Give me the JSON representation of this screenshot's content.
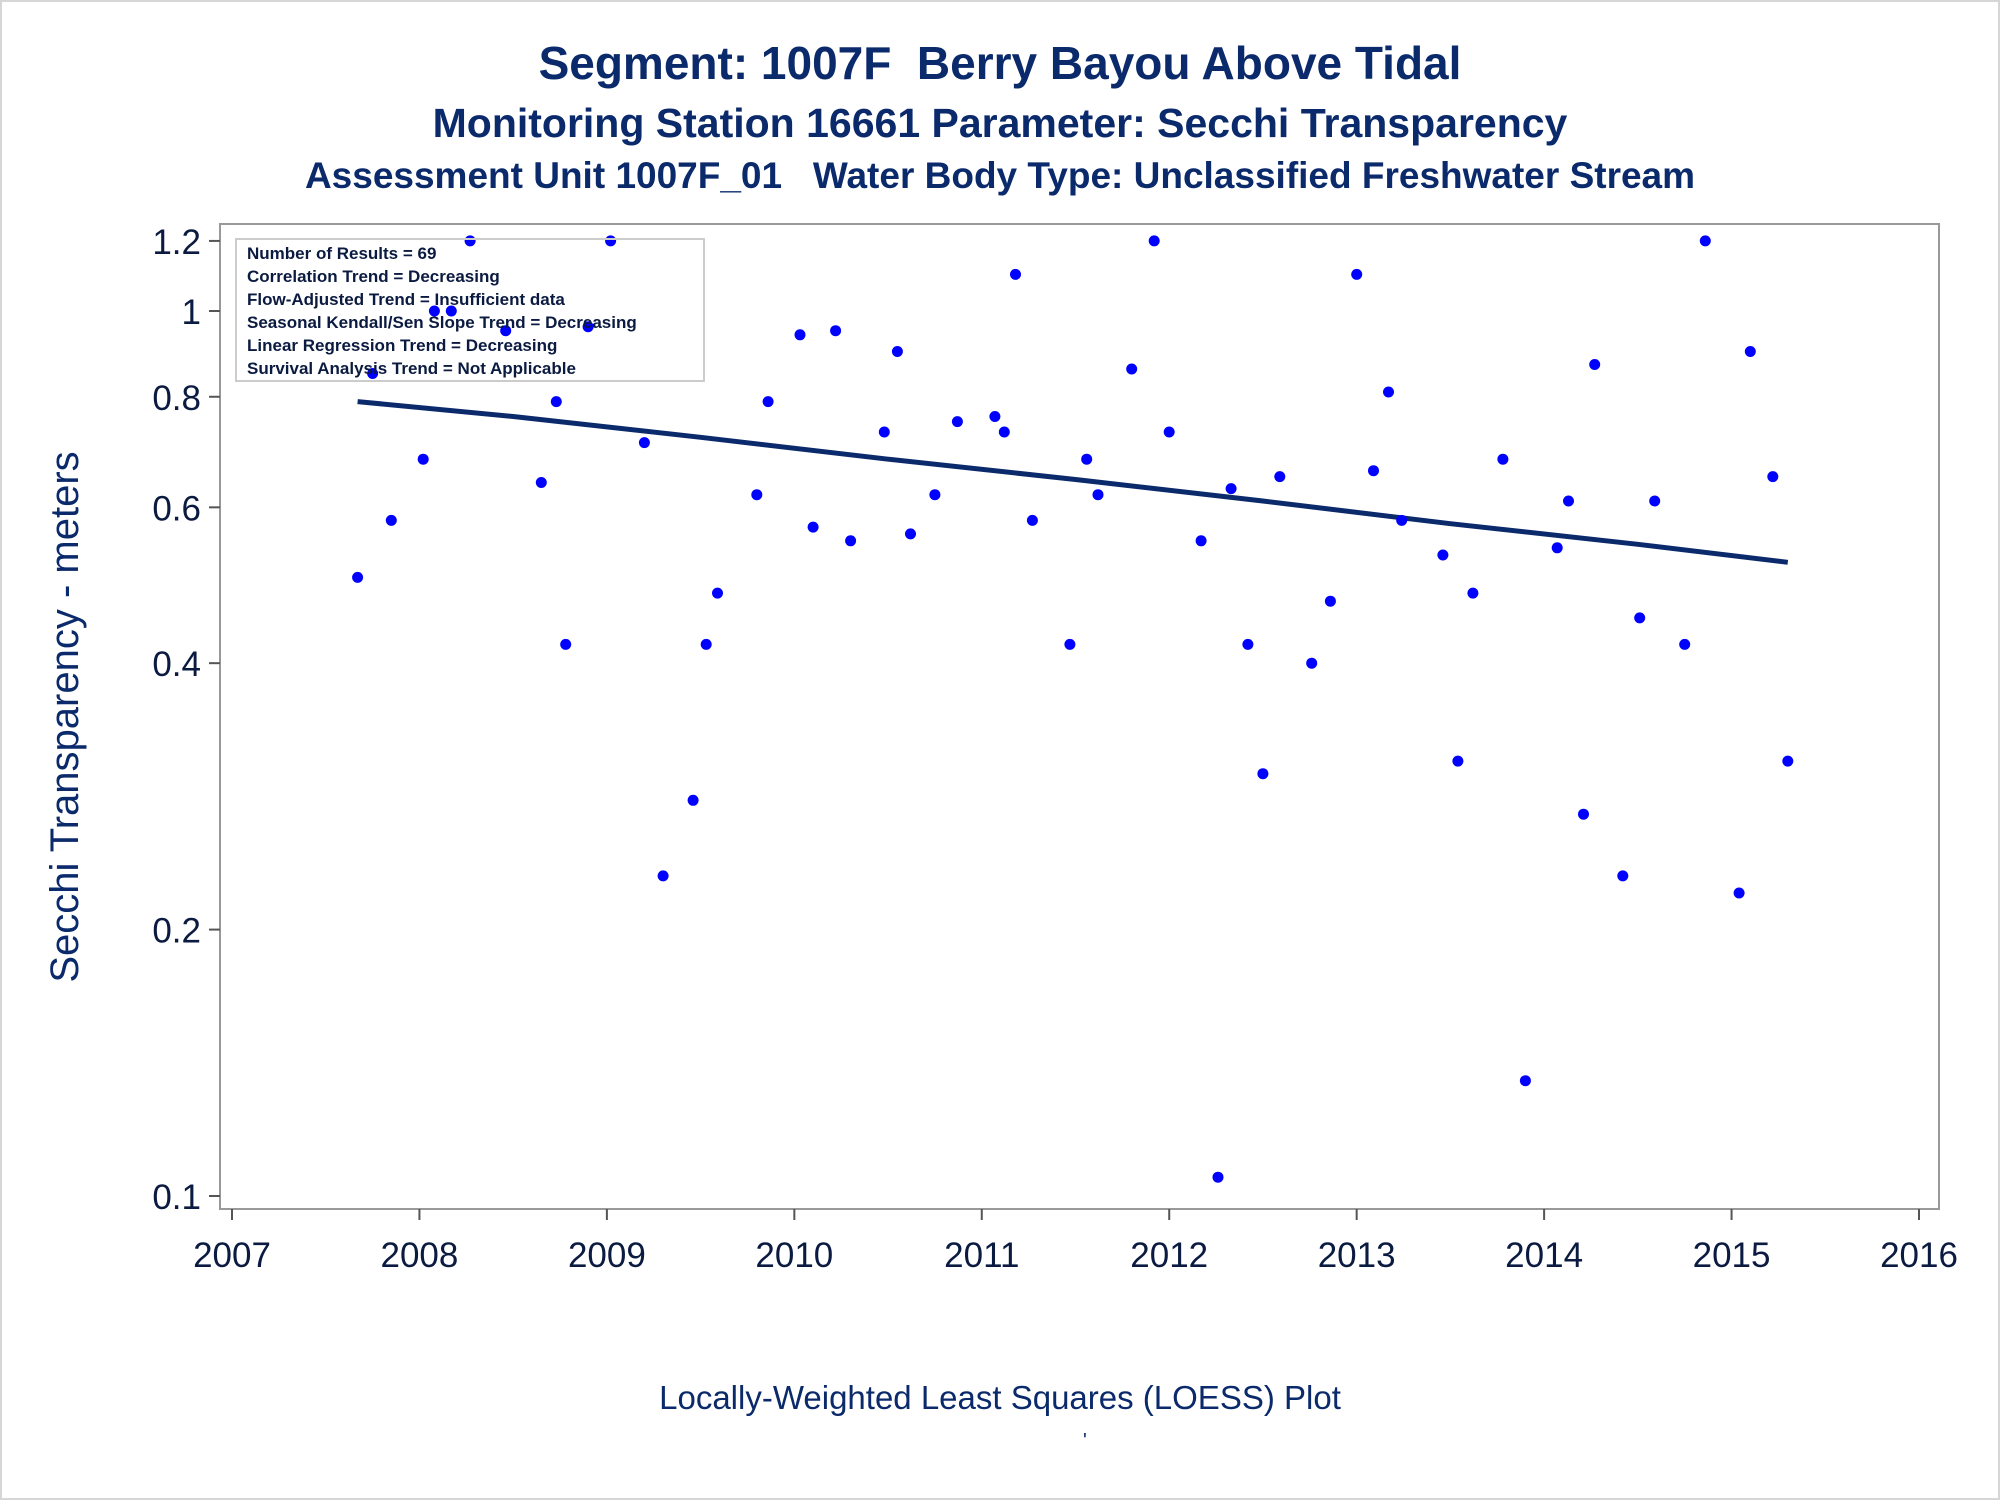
{
  "title": {
    "line1": "Segment: 1007F  Berry Bayou Above Tidal",
    "line2": "Monitoring Station 16661 Parameter: Secchi Transparency",
    "line3": "Assessment Unit 1007F_01   Water Body Type: Unclassified Freshwater Stream"
  },
  "footnote": "Locally-Weighted Least Squares (LOESS) Plot",
  "stray_mark": "'",
  "colors": {
    "text": "#0b2a6b",
    "points": "#0000ff",
    "trend": "#0b2a6b",
    "frame": "#999999"
  },
  "stats": [
    "Number of Results = 69",
    "Correlation Trend = Decreasing",
    "Flow-Adjusted Trend = Insufficient data",
    "Seasonal Kendall/Sen Slope Trend = Decreasing",
    "Linear Regression Trend = Decreasing",
    "Survival Analysis Trend = Not Applicable"
  ],
  "chart_data": {
    "type": "scatter",
    "ylabel": "Secchi Transparency - meters",
    "xlabel": "",
    "y_scale": "log",
    "xlim": [
      2007,
      2016
    ],
    "ylim": [
      0.1,
      1.25
    ],
    "x_ticks": [
      "2007",
      "2008",
      "2009",
      "2010",
      "2011",
      "2012",
      "2013",
      "2014",
      "2015",
      "2016"
    ],
    "y_ticks": [
      "0.1",
      "0.2",
      "0.4",
      "0.6",
      "0.8",
      "1",
      "1.2"
    ],
    "series": [
      {
        "points": [
          [
            2007.67,
            0.5
          ],
          [
            2007.75,
            0.85
          ],
          [
            2007.85,
            0.58
          ],
          [
            2008.02,
            0.68
          ],
          [
            2008.08,
            1.0
          ],
          [
            2008.17,
            1.0
          ],
          [
            2008.27,
            1.2
          ],
          [
            2008.46,
            0.95
          ],
          [
            2008.65,
            0.64
          ],
          [
            2008.73,
            0.79
          ],
          [
            2008.78,
            0.42
          ],
          [
            2008.9,
            0.96
          ],
          [
            2009.02,
            1.2
          ],
          [
            2009.2,
            0.71
          ],
          [
            2009.3,
            0.23
          ],
          [
            2009.46,
            0.28
          ],
          [
            2009.53,
            0.42
          ],
          [
            2009.59,
            0.48
          ],
          [
            2009.8,
            0.62
          ],
          [
            2009.86,
            0.79
          ],
          [
            2010.03,
            0.94
          ],
          [
            2010.1,
            0.57
          ],
          [
            2010.22,
            0.95
          ],
          [
            2010.3,
            0.55
          ],
          [
            2010.48,
            0.73
          ],
          [
            2010.55,
            0.9
          ],
          [
            2010.62,
            0.56
          ],
          [
            2010.75,
            0.62
          ],
          [
            2010.87,
            0.75
          ],
          [
            2011.07,
            0.76
          ],
          [
            2011.12,
            0.73
          ],
          [
            2011.18,
            1.1
          ],
          [
            2011.27,
            0.58
          ],
          [
            2011.47,
            0.42
          ],
          [
            2011.56,
            0.68
          ],
          [
            2011.62,
            0.62
          ],
          [
            2011.8,
            0.86
          ],
          [
            2011.92,
            1.2
          ],
          [
            2012.0,
            0.73
          ],
          [
            2012.17,
            0.55
          ],
          [
            2012.26,
            0.105
          ],
          [
            2012.33,
            0.63
          ],
          [
            2012.42,
            0.42
          ],
          [
            2012.5,
            0.3
          ],
          [
            2012.59,
            0.65
          ],
          [
            2012.76,
            0.4
          ],
          [
            2012.86,
            0.47
          ],
          [
            2013.0,
            1.1
          ],
          [
            2013.09,
            0.66
          ],
          [
            2013.17,
            0.81
          ],
          [
            2013.24,
            0.58
          ],
          [
            2013.46,
            0.53
          ],
          [
            2013.54,
            0.31
          ],
          [
            2013.62,
            0.48
          ],
          [
            2013.78,
            0.68
          ],
          [
            2013.9,
            0.135
          ],
          [
            2014.07,
            0.54
          ],
          [
            2014.13,
            0.61
          ],
          [
            2014.21,
            0.27
          ],
          [
            2014.27,
            0.87
          ],
          [
            2014.42,
            0.23
          ],
          [
            2014.51,
            0.45
          ],
          [
            2014.59,
            0.61
          ],
          [
            2014.75,
            0.42
          ],
          [
            2014.86,
            1.2
          ],
          [
            2015.04,
            0.22
          ],
          [
            2015.1,
            0.9
          ],
          [
            2015.22,
            0.65
          ],
          [
            2015.3,
            0.31
          ]
        ]
      }
    ],
    "trend_line": [
      [
        2007.67,
        0.79
      ],
      [
        2008.5,
        0.76
      ],
      [
        2009.5,
        0.72
      ],
      [
        2010.5,
        0.68
      ],
      [
        2011.5,
        0.645
      ],
      [
        2012.5,
        0.61
      ],
      [
        2013.5,
        0.575
      ],
      [
        2014.5,
        0.545
      ],
      [
        2015.3,
        0.52
      ]
    ]
  }
}
